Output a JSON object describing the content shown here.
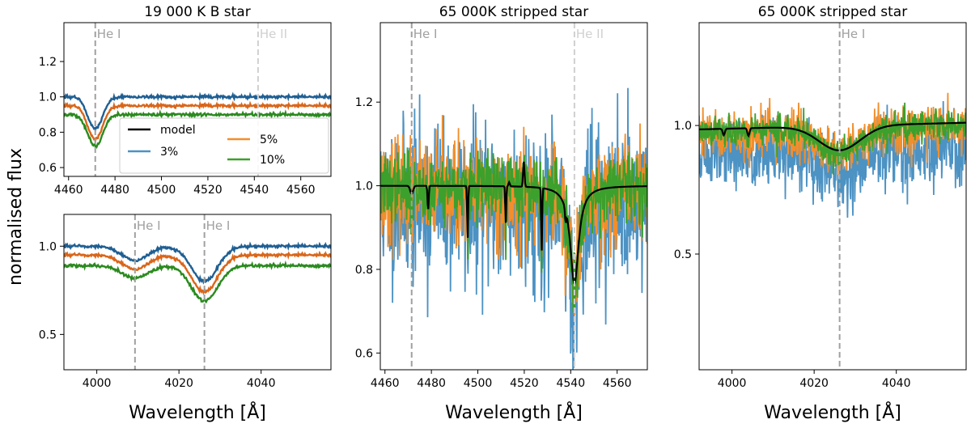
{
  "figure": {
    "ylabel": "normalised flux",
    "colors": {
      "model": "#000000",
      "3%": "#4c92c3",
      "5%": "#f28e2b",
      "10%": "#3ca02c",
      "he1_line": "#a0a0a0",
      "he2_line": "#d0d0d0"
    }
  },
  "chart_data": [
    {
      "id": "p1",
      "type": "line",
      "title": "19 000 K B star",
      "xlabel": "",
      "ylabel": "normalised flux",
      "xlim": [
        4458,
        4573
      ],
      "ylim": [
        0.55,
        1.42
      ],
      "xticks": [
        "4460",
        "4480",
        "4500",
        "4520",
        "4540",
        "4560"
      ],
      "yticks": [
        "0.6",
        "0.8",
        "1.0",
        "1.2"
      ],
      "lines": [
        {
          "x": 4471.5,
          "label": "He I"
        },
        {
          "x": 4541.6,
          "label": "He II"
        }
      ],
      "legend": {
        "position": "lower-right",
        "entries": [
          "model",
          "3%",
          "5%",
          "10%"
        ]
      },
      "series": [
        {
          "name": "3%",
          "continuum": 1.0,
          "features": [
            {
              "center": 4471.5,
              "depth": 0.18
            }
          ]
        },
        {
          "name": "5%",
          "continuum": 0.95,
          "features": [
            {
              "center": 4471.5,
              "depth": 0.19
            }
          ]
        },
        {
          "name": "10%",
          "continuum": 0.9,
          "features": [
            {
              "center": 4471.5,
              "depth": 0.18
            }
          ]
        }
      ]
    },
    {
      "id": "p2",
      "type": "line",
      "title": "",
      "xlabel": "Wavelength [Å]",
      "ylabel": "normalised flux",
      "xlim": [
        3992,
        4057
      ],
      "ylim": [
        0.3,
        1.18
      ],
      "xticks": [
        "4000",
        "4020",
        "4040"
      ],
      "yticks": [
        "0.5",
        "1.0"
      ],
      "lines": [
        {
          "x": 4009.3,
          "label": "He I"
        },
        {
          "x": 4026.2,
          "label": "He I"
        }
      ],
      "series": [
        {
          "name": "3%",
          "continuum": 1.0,
          "features": [
            {
              "center": 4009.3,
              "depth": 0.08
            },
            {
              "center": 4026.2,
              "depth": 0.2
            }
          ]
        },
        {
          "name": "5%",
          "continuum": 0.95,
          "features": [
            {
              "center": 4009.3,
              "depth": 0.08
            },
            {
              "center": 4026.2,
              "depth": 0.21
            }
          ]
        },
        {
          "name": "10%",
          "continuum": 0.89,
          "features": [
            {
              "center": 4009.3,
              "depth": 0.07
            },
            {
              "center": 4026.2,
              "depth": 0.2
            }
          ]
        }
      ]
    },
    {
      "id": "p3",
      "type": "line",
      "title": "65 000K stripped star",
      "xlabel": "Wavelength [Å]",
      "ylabel": "",
      "xlim": [
        4458,
        4573
      ],
      "ylim": [
        0.56,
        1.39
      ],
      "xticks": [
        "4460",
        "4480",
        "4500",
        "4520",
        "4540",
        "4560"
      ],
      "yticks": [
        "0.6",
        "0.8",
        "1.0",
        "1.2"
      ],
      "lines": [
        {
          "x": 4471.5,
          "label": "He I"
        },
        {
          "x": 4541.6,
          "label": "He II"
        }
      ],
      "series": [
        {
          "name": "3%",
          "noise": 0.095,
          "bias": -0.04,
          "seed": 11
        },
        {
          "name": "5%",
          "noise": 0.06,
          "bias": -0.015,
          "seed": 23
        },
        {
          "name": "10%",
          "noise": 0.04,
          "bias": -0.005,
          "seed": 37
        },
        {
          "name": "model",
          "continuum": 1.0,
          "features": [
            {
              "center": 4541.6,
              "depth": 0.235,
              "width": 2.2,
              "kind": "lorentz"
            },
            {
              "center": 4471.5,
              "depth": 0.02,
              "width": 0.6
            },
            {
              "center": 4478.6,
              "depth": 0.06,
              "width": 0.25
            },
            {
              "center": 4495.6,
              "depth": 0.13,
              "width": 0.2
            },
            {
              "center": 4512.0,
              "depth": 0.09,
              "width": 0.2
            },
            {
              "center": 4527.5,
              "depth": 0.16,
              "width": 0.2
            },
            {
              "center": 4537.8,
              "depth": 0.03,
              "width": 0.25
            }
          ],
          "emission": [
            {
              "center": 4519.8,
              "height": 0.06,
              "width": 0.3
            },
            {
              "center": 4513.5,
              "height": 0.01,
              "width": 0.3
            }
          ]
        }
      ]
    },
    {
      "id": "p4",
      "type": "line",
      "title": "65 000K stripped star",
      "xlabel": "Wavelength [Å]",
      "ylabel": "",
      "xlim": [
        3992,
        4057
      ],
      "ylim": [
        0.05,
        1.4
      ],
      "xticks": [
        "4000",
        "4020",
        "4040"
      ],
      "yticks": [
        "0.5",
        "1.0"
      ],
      "lines": [
        {
          "x": 4026.2,
          "label": "He I"
        }
      ],
      "series": [
        {
          "name": "3%",
          "noise": 0.07,
          "bias": -0.1,
          "seed": 51
        },
        {
          "name": "5%",
          "noise": 0.045,
          "bias": -0.02,
          "seed": 63
        },
        {
          "name": "10%",
          "noise": 0.03,
          "bias": -0.01,
          "seed": 77
        },
        {
          "name": "model",
          "continuum": 1.0,
          "features": [
            {
              "center": 4026.2,
              "depth": 0.095,
              "width": 5.0
            },
            {
              "center": 3998.0,
              "depth": 0.025,
              "width": 0.25
            },
            {
              "center": 4004.0,
              "depth": 0.03,
              "width": 0.25
            }
          ],
          "slope": 0.012
        }
      ]
    }
  ]
}
